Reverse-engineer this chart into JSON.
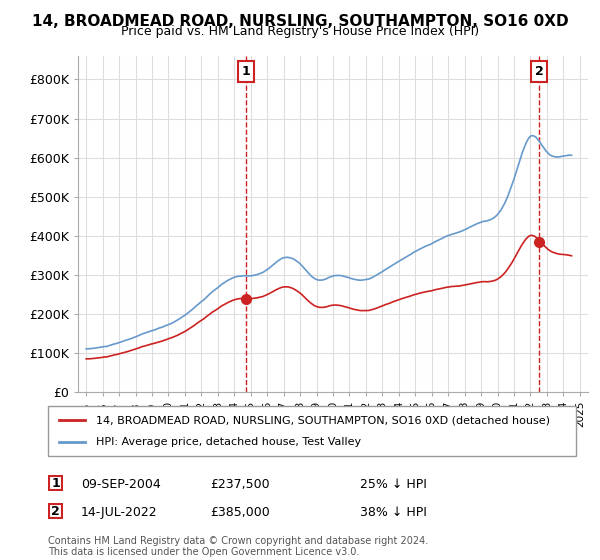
{
  "title": "14, BROADMEAD ROAD, NURSLING, SOUTHAMPTON, SO16 0XD",
  "subtitle": "Price paid vs. HM Land Registry's House Price Index (HPI)",
  "legend_entry1": "14, BROADMEAD ROAD, NURSLING, SOUTHAMPTON, SO16 0XD (detached house)",
  "legend_entry2": "HPI: Average price, detached house, Test Valley",
  "sale1_date": "09-SEP-2004",
  "sale1_price": 237500,
  "sale1_label": "25% ↓ HPI",
  "sale2_date": "14-JUL-2022",
  "sale2_price": 385000,
  "sale2_label": "38% ↓ HPI",
  "footnote": "Contains HM Land Registry data © Crown copyright and database right 2024.\nThis data is licensed under the Open Government Licence v3.0.",
  "hpi_color": "#6699cc",
  "price_color": "#cc2222",
  "marker_color_1": "#cc2222",
  "marker_color_2": "#cc2222",
  "vline_color": "#cc2222",
  "background_color": "#ffffff",
  "grid_color": "#dddddd",
  "ylim": [
    0,
    850000
  ],
  "yticks": [
    0,
    100000,
    200000,
    300000,
    400000,
    500000,
    600000,
    700000,
    800000
  ]
}
